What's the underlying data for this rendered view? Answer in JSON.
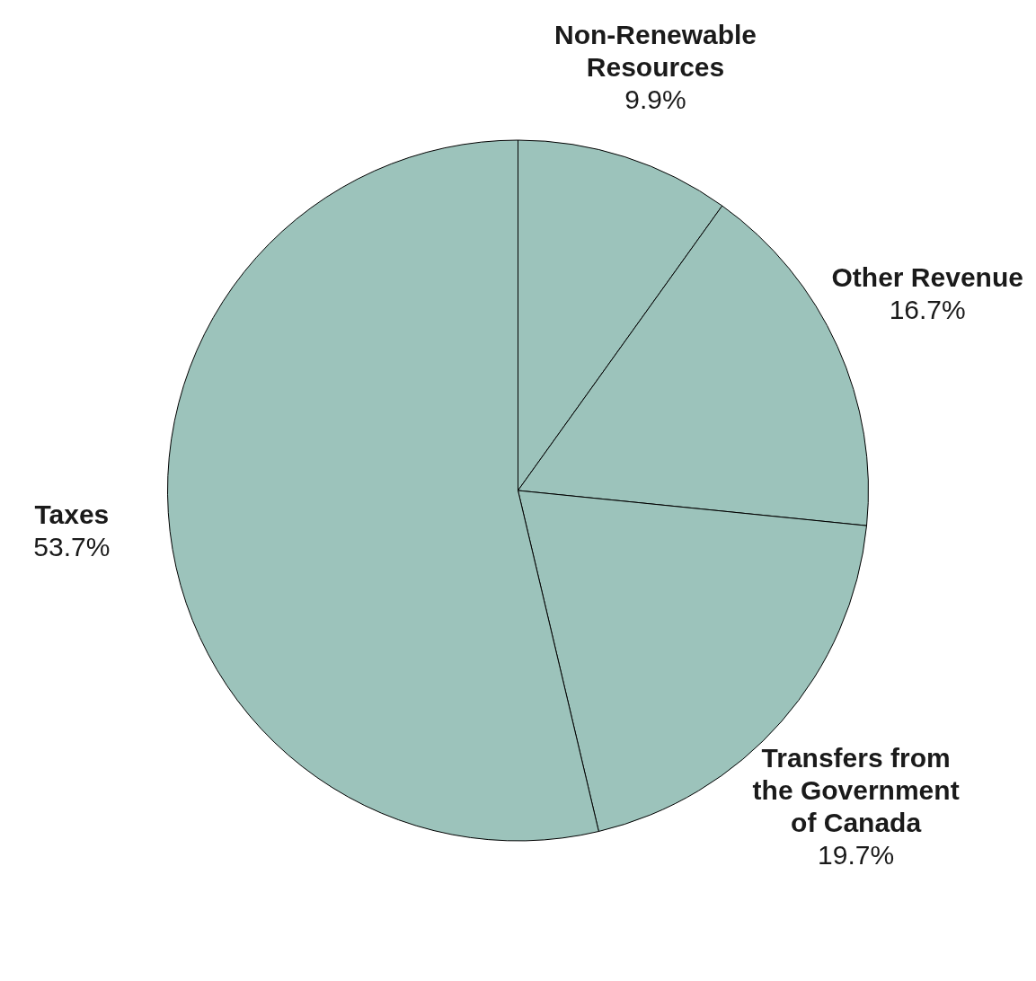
{
  "chart_data": {
    "type": "pie",
    "categories": [
      "Non-Renewable Resources",
      "Other Revenue",
      "Transfers from the Government of Canada",
      "Taxes"
    ],
    "values": [
      9.9,
      16.7,
      19.7,
      53.7
    ],
    "value_labels": [
      "9.9%",
      "16.7%",
      "19.7%",
      "53.7%"
    ],
    "colors": [
      "#9cc3bb",
      "#9cc3bb",
      "#9cc3bb",
      "#9cc3bb"
    ],
    "legend": false
  }
}
